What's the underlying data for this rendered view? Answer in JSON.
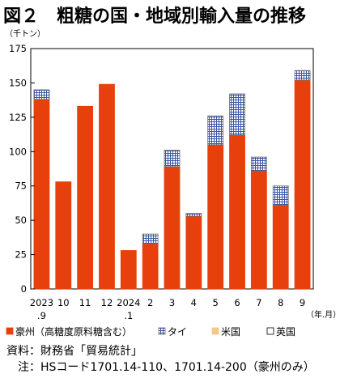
{
  "title": "図２　粗糖の国・地域別輸入量の推移",
  "chart_data": {
    "type": "bar",
    "stacked": true,
    "y_unit": "（千トン）",
    "x_unit": "（年.月）",
    "ylim": [
      0,
      175
    ],
    "yticks": [
      0,
      25,
      50,
      75,
      100,
      125,
      150,
      175
    ],
    "categories": [
      [
        "2023",
        ".9"
      ],
      [
        "10"
      ],
      [
        "11"
      ],
      [
        "12"
      ],
      [
        "2024",
        ".1"
      ],
      [
        "2"
      ],
      [
        "3"
      ],
      [
        "4"
      ],
      [
        "5"
      ],
      [
        "6"
      ],
      [
        "7"
      ],
      [
        "8"
      ],
      [
        "9"
      ]
    ],
    "series": [
      {
        "name": "豪州（高糖度原料糖含む）",
        "color": "#e8400c",
        "pattern": "solid",
        "values": [
          138,
          78,
          133,
          149,
          28,
          33,
          89,
          53,
          105,
          112,
          86,
          61,
          152
        ]
      },
      {
        "name": "タイ",
        "color": "#3a56a6",
        "pattern": "grid",
        "values": [
          7,
          0,
          0,
          0,
          0,
          7,
          12,
          2,
          21,
          30,
          10,
          14,
          7
        ]
      },
      {
        "name": "米国",
        "color": "#f2c98c",
        "pattern": "solid",
        "values": [
          0,
          0,
          0,
          0,
          0,
          0,
          0,
          0,
          0,
          0,
          0,
          0,
          0
        ]
      },
      {
        "name": "英国",
        "color": "#ffffff",
        "pattern": "outline",
        "values": [
          0,
          0,
          0,
          0,
          0,
          0,
          0,
          0,
          0,
          0,
          0,
          0,
          0
        ]
      }
    ]
  },
  "notes": {
    "source": "資料：財務省「貿易統計」",
    "note": "　注：HSコード1701.14-110、1701.14-200（豪州のみ）"
  }
}
